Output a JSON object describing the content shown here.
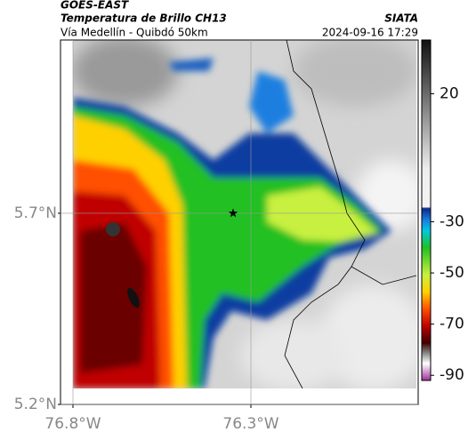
{
  "map": {
    "title": "GOES-EAST",
    "subtitle": "Temperatura de Brillo CH13",
    "brand": "SIATA",
    "region": "Vía Medellín - Quibdó 50km",
    "timestamp": "2024-09-16 17:29",
    "xlim": [
      -76.835,
      -75.83
    ],
    "ylim": [
      5.2,
      6.153
    ],
    "xticks": [
      {
        "value": -76.8,
        "label": "76.8°W"
      },
      {
        "value": -76.3,
        "label": "76.3°W"
      }
    ],
    "yticks": [
      {
        "value": 5.7,
        "label": "5.7°N"
      },
      {
        "value": 5.2,
        "label": "5.2°N"
      }
    ],
    "grid": true,
    "marker": {
      "lon": -76.35,
      "lat": 5.7
    },
    "colorbar": {
      "lim": [
        -92,
        41
      ],
      "ticks": [
        20,
        -30,
        -50,
        -70,
        -90
      ]
    }
  }
}
